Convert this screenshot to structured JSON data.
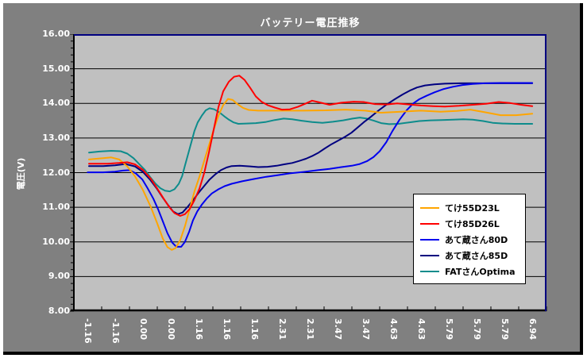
{
  "chart_data": {
    "type": "line",
    "title": "バッテリー電圧推移",
    "ylabel": "電圧(V)",
    "ylim": [
      8,
      16
    ],
    "y_major_step": 1,
    "y_minor_step": 0.2,
    "grid": "horizontal-major",
    "legend_position": "inside-right",
    "y_tick_labels": [
      "16.00",
      "15.00",
      "14.00",
      "13.00",
      "12.00",
      "11.00",
      "10.00",
      "9.00",
      "8.00"
    ],
    "x_tick_labels": [
      "-1.16",
      "-1.16",
      "0.00",
      "0.00",
      "1.16",
      "1.16",
      "1.16",
      "2.31",
      "2.31",
      "3.47",
      "3.47",
      "4.63",
      "4.63",
      "5.79",
      "5.79",
      "5.79",
      "6.94"
    ],
    "series": [
      {
        "name": "てけ55D23L",
        "color": "#FFA500",
        "points": [
          [
            0.032,
            12.38
          ],
          [
            0.062,
            12.42
          ],
          [
            0.079,
            12.44
          ],
          [
            0.096,
            12.38
          ],
          [
            0.113,
            12.18
          ],
          [
            0.129,
            11.9
          ],
          [
            0.146,
            11.5
          ],
          [
            0.163,
            11.0
          ],
          [
            0.176,
            10.55
          ],
          [
            0.188,
            10.1
          ],
          [
            0.198,
            9.85
          ],
          [
            0.207,
            9.77
          ],
          [
            0.215,
            9.82
          ],
          [
            0.225,
            10.05
          ],
          [
            0.235,
            10.45
          ],
          [
            0.245,
            10.95
          ],
          [
            0.255,
            11.45
          ],
          [
            0.266,
            11.9
          ],
          [
            0.276,
            12.35
          ],
          [
            0.286,
            12.8
          ],
          [
            0.296,
            13.25
          ],
          [
            0.306,
            13.65
          ],
          [
            0.316,
            13.95
          ],
          [
            0.326,
            14.13
          ],
          [
            0.336,
            14.1
          ],
          [
            0.346,
            13.98
          ],
          [
            0.358,
            13.87
          ],
          [
            0.37,
            13.81
          ],
          [
            0.39,
            13.79
          ],
          [
            0.432,
            13.79
          ],
          [
            0.482,
            13.79
          ],
          [
            0.533,
            13.8
          ],
          [
            0.575,
            13.82
          ],
          [
            0.617,
            13.79
          ],
          [
            0.65,
            13.73
          ],
          [
            0.692,
            13.76
          ],
          [
            0.734,
            13.79
          ],
          [
            0.776,
            13.76
          ],
          [
            0.81,
            13.78
          ],
          [
            0.839,
            13.82
          ],
          [
            0.872,
            13.74
          ],
          [
            0.903,
            13.66
          ],
          [
            0.936,
            13.66
          ],
          [
            0.97,
            13.7
          ]
        ]
      },
      {
        "name": "てけ85D26L",
        "color": "#FF0000",
        "points": [
          [
            0.032,
            12.26
          ],
          [
            0.071,
            12.26
          ],
          [
            0.096,
            12.28
          ],
          [
            0.113,
            12.3
          ],
          [
            0.129,
            12.24
          ],
          [
            0.146,
            12.08
          ],
          [
            0.163,
            11.82
          ],
          [
            0.176,
            11.55
          ],
          [
            0.19,
            11.25
          ],
          [
            0.202,
            11.0
          ],
          [
            0.213,
            10.83
          ],
          [
            0.225,
            10.75
          ],
          [
            0.235,
            10.8
          ],
          [
            0.245,
            10.95
          ],
          [
            0.255,
            11.2
          ],
          [
            0.266,
            11.55
          ],
          [
            0.276,
            12.0
          ],
          [
            0.286,
            12.6
          ],
          [
            0.296,
            13.25
          ],
          [
            0.306,
            13.9
          ],
          [
            0.316,
            14.35
          ],
          [
            0.328,
            14.63
          ],
          [
            0.339,
            14.77
          ],
          [
            0.35,
            14.8
          ],
          [
            0.361,
            14.68
          ],
          [
            0.373,
            14.45
          ],
          [
            0.385,
            14.2
          ],
          [
            0.397,
            14.05
          ],
          [
            0.41,
            13.95
          ],
          [
            0.425,
            13.88
          ],
          [
            0.44,
            13.82
          ],
          [
            0.457,
            13.83
          ],
          [
            0.474,
            13.9
          ],
          [
            0.491,
            14.0
          ],
          [
            0.504,
            14.08
          ],
          [
            0.519,
            14.03
          ],
          [
            0.541,
            13.96
          ],
          [
            0.566,
            14.02
          ],
          [
            0.592,
            14.05
          ],
          [
            0.613,
            14.04
          ],
          [
            0.637,
            13.98
          ],
          [
            0.662,
            13.97
          ],
          [
            0.684,
            14.0
          ],
          [
            0.709,
            13.97
          ],
          [
            0.734,
            13.94
          ],
          [
            0.76,
            13.92
          ],
          [
            0.785,
            13.91
          ],
          [
            0.815,
            13.93
          ],
          [
            0.844,
            13.96
          ],
          [
            0.872,
            13.99
          ],
          [
            0.899,
            14.04
          ],
          [
            0.923,
            14.01
          ],
          [
            0.946,
            13.96
          ],
          [
            0.97,
            13.92
          ]
        ]
      },
      {
        "name": "あて蔵さん80D",
        "color": "#0000EE",
        "points": [
          [
            0.029,
            12.01
          ],
          [
            0.062,
            12.01
          ],
          [
            0.087,
            12.03
          ],
          [
            0.104,
            12.06
          ],
          [
            0.118,
            12.07
          ],
          [
            0.131,
            11.98
          ],
          [
            0.145,
            11.8
          ],
          [
            0.156,
            11.55
          ],
          [
            0.168,
            11.25
          ],
          [
            0.178,
            10.95
          ],
          [
            0.188,
            10.6
          ],
          [
            0.198,
            10.25
          ],
          [
            0.208,
            9.98
          ],
          [
            0.217,
            9.86
          ],
          [
            0.227,
            9.86
          ],
          [
            0.235,
            10.0
          ],
          [
            0.244,
            10.3
          ],
          [
            0.252,
            10.62
          ],
          [
            0.261,
            10.88
          ],
          [
            0.271,
            11.08
          ],
          [
            0.281,
            11.25
          ],
          [
            0.292,
            11.4
          ],
          [
            0.306,
            11.52
          ],
          [
            0.319,
            11.61
          ],
          [
            0.334,
            11.68
          ],
          [
            0.356,
            11.75
          ],
          [
            0.382,
            11.82
          ],
          [
            0.407,
            11.88
          ],
          [
            0.432,
            11.93
          ],
          [
            0.457,
            11.98
          ],
          [
            0.486,
            12.02
          ],
          [
            0.516,
            12.07
          ],
          [
            0.541,
            12.11
          ],
          [
            0.566,
            12.16
          ],
          [
            0.588,
            12.2
          ],
          [
            0.605,
            12.25
          ],
          [
            0.62,
            12.33
          ],
          [
            0.634,
            12.45
          ],
          [
            0.647,
            12.62
          ],
          [
            0.661,
            12.88
          ],
          [
            0.674,
            13.2
          ],
          [
            0.689,
            13.53
          ],
          [
            0.704,
            13.8
          ],
          [
            0.718,
            14.0
          ],
          [
            0.731,
            14.12
          ],
          [
            0.746,
            14.22
          ],
          [
            0.763,
            14.32
          ],
          [
            0.781,
            14.41
          ],
          [
            0.802,
            14.48
          ],
          [
            0.822,
            14.53
          ],
          [
            0.844,
            14.56
          ],
          [
            0.869,
            14.58
          ],
          [
            0.903,
            14.59
          ],
          [
            0.936,
            14.59
          ],
          [
            0.97,
            14.59
          ]
        ]
      },
      {
        "name": "あて蔵さん85D",
        "color": "#000080",
        "points": [
          [
            0.032,
            12.19
          ],
          [
            0.062,
            12.19
          ],
          [
            0.087,
            12.21
          ],
          [
            0.109,
            12.25
          ],
          [
            0.129,
            12.18
          ],
          [
            0.146,
            12.02
          ],
          [
            0.161,
            11.8
          ],
          [
            0.175,
            11.55
          ],
          [
            0.188,
            11.28
          ],
          [
            0.2,
            11.05
          ],
          [
            0.21,
            10.88
          ],
          [
            0.22,
            10.8
          ],
          [
            0.23,
            10.85
          ],
          [
            0.24,
            11.0
          ],
          [
            0.252,
            11.2
          ],
          [
            0.264,
            11.42
          ],
          [
            0.276,
            11.62
          ],
          [
            0.287,
            11.8
          ],
          [
            0.299,
            11.95
          ],
          [
            0.311,
            12.07
          ],
          [
            0.323,
            12.15
          ],
          [
            0.334,
            12.19
          ],
          [
            0.351,
            12.2
          ],
          [
            0.373,
            12.18
          ],
          [
            0.39,
            12.16
          ],
          [
            0.41,
            12.17
          ],
          [
            0.429,
            12.2
          ],
          [
            0.445,
            12.24
          ],
          [
            0.462,
            12.28
          ],
          [
            0.477,
            12.34
          ],
          [
            0.491,
            12.4
          ],
          [
            0.504,
            12.48
          ],
          [
            0.518,
            12.58
          ],
          [
            0.531,
            12.7
          ],
          [
            0.545,
            12.82
          ],
          [
            0.56,
            12.93
          ],
          [
            0.573,
            13.03
          ],
          [
            0.587,
            13.15
          ],
          [
            0.6,
            13.3
          ],
          [
            0.613,
            13.45
          ],
          [
            0.629,
            13.62
          ],
          [
            0.645,
            13.8
          ],
          [
            0.662,
            13.97
          ],
          [
            0.679,
            14.12
          ],
          [
            0.696,
            14.26
          ],
          [
            0.711,
            14.37
          ],
          [
            0.726,
            14.46
          ],
          [
            0.743,
            14.52
          ],
          [
            0.763,
            14.55
          ],
          [
            0.785,
            14.57
          ],
          [
            0.818,
            14.58
          ],
          [
            0.852,
            14.58
          ],
          [
            0.886,
            14.58
          ],
          [
            0.928,
            14.58
          ],
          [
            0.97,
            14.58
          ]
        ]
      },
      {
        "name": "FATさんOptima",
        "color": "#0D8C8C",
        "points": [
          [
            0.032,
            12.58
          ],
          [
            0.054,
            12.61
          ],
          [
            0.079,
            12.63
          ],
          [
            0.099,
            12.62
          ],
          [
            0.113,
            12.55
          ],
          [
            0.126,
            12.42
          ],
          [
            0.138,
            12.25
          ],
          [
            0.15,
            12.08
          ],
          [
            0.161,
            11.88
          ],
          [
            0.173,
            11.68
          ],
          [
            0.183,
            11.55
          ],
          [
            0.193,
            11.48
          ],
          [
            0.203,
            11.46
          ],
          [
            0.213,
            11.52
          ],
          [
            0.222,
            11.68
          ],
          [
            0.229,
            11.9
          ],
          [
            0.235,
            12.2
          ],
          [
            0.242,
            12.55
          ],
          [
            0.249,
            12.9
          ],
          [
            0.255,
            13.2
          ],
          [
            0.262,
            13.45
          ],
          [
            0.271,
            13.65
          ],
          [
            0.279,
            13.8
          ],
          [
            0.287,
            13.86
          ],
          [
            0.297,
            13.83
          ],
          [
            0.308,
            13.74
          ],
          [
            0.318,
            13.63
          ],
          [
            0.328,
            13.53
          ],
          [
            0.338,
            13.45
          ],
          [
            0.348,
            13.41
          ],
          [
            0.365,
            13.42
          ],
          [
            0.385,
            13.43
          ],
          [
            0.405,
            13.46
          ],
          [
            0.425,
            13.52
          ],
          [
            0.444,
            13.56
          ],
          [
            0.462,
            13.54
          ],
          [
            0.482,
            13.5
          ],
          [
            0.504,
            13.46
          ],
          [
            0.526,
            13.44
          ],
          [
            0.548,
            13.47
          ],
          [
            0.57,
            13.51
          ],
          [
            0.59,
            13.56
          ],
          [
            0.605,
            13.59
          ],
          [
            0.62,
            13.56
          ],
          [
            0.635,
            13.5
          ],
          [
            0.65,
            13.43
          ],
          [
            0.667,
            13.4
          ],
          [
            0.687,
            13.41
          ],
          [
            0.709,
            13.45
          ],
          [
            0.731,
            13.49
          ],
          [
            0.755,
            13.51
          ],
          [
            0.778,
            13.52
          ],
          [
            0.802,
            13.53
          ],
          [
            0.824,
            13.54
          ],
          [
            0.844,
            13.53
          ],
          [
            0.866,
            13.49
          ],
          [
            0.886,
            13.44
          ],
          [
            0.908,
            13.42
          ],
          [
            0.933,
            13.41
          ],
          [
            0.97,
            13.41
          ]
        ]
      }
    ],
    "colors": {
      "chart_background": "#808080",
      "plot_background": "#C0C0C0",
      "gridline": "#000000",
      "plot_border_top_right": "#000080",
      "axis_text": "#FFFFFF",
      "legend_background": "#FFFFFF"
    }
  }
}
